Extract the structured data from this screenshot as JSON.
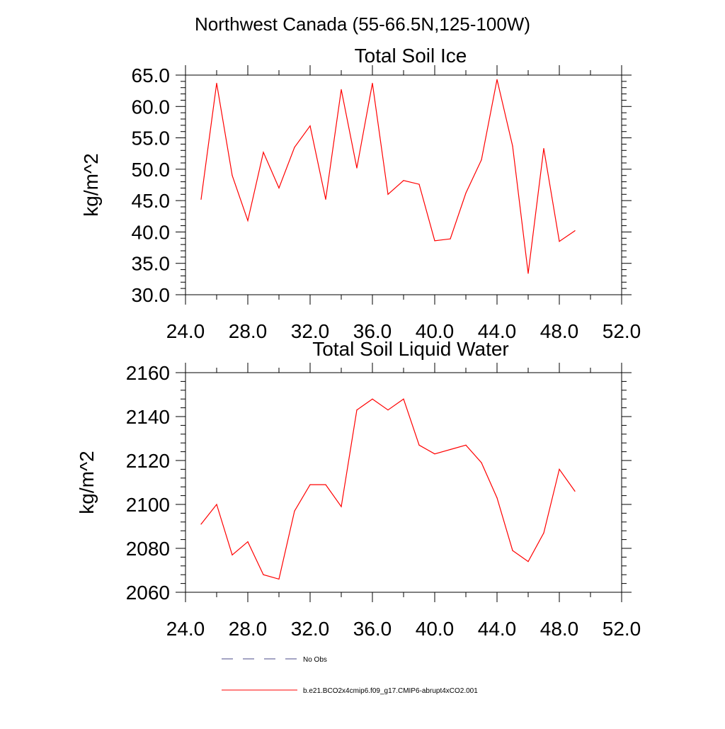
{
  "page_title": "Northwest Canada (55-66.5N,125-100W)",
  "chart_data": [
    {
      "type": "line",
      "title": "Total Soil Ice",
      "xlabel": "",
      "ylabel": "kg/m^2",
      "xlim": [
        24,
        52
      ],
      "ylim": [
        30,
        65
      ],
      "x_ticks": [
        24,
        28,
        32,
        36,
        40,
        44,
        48,
        52
      ],
      "x_tick_labels": [
        "24.0",
        "28.0",
        "32.0",
        "36.0",
        "40.0",
        "44.0",
        "48.0",
        "52.0"
      ],
      "y_ticks": [
        30,
        35,
        40,
        45,
        50,
        55,
        60,
        65
      ],
      "y_tick_labels": [
        "30.0",
        "35.0",
        "40.0",
        "45.0",
        "50.0",
        "55.0",
        "60.0",
        "65.0"
      ],
      "series": [
        {
          "name": "b.e21.BCO2x4cmip6.f09_g17.CMIP6-abrupt4xCO2.001",
          "color": "#ff0000",
          "x": [
            25,
            26,
            27,
            28,
            29,
            30,
            31,
            32,
            33,
            34,
            35,
            36,
            37,
            38,
            39,
            40,
            41,
            42,
            43,
            44,
            45,
            46,
            47,
            48,
            49
          ],
          "values": [
            45.2,
            63.7,
            49.0,
            41.8,
            52.7,
            47.0,
            53.5,
            56.9,
            45.2,
            62.7,
            50.2,
            63.7,
            46.0,
            48.2,
            47.6,
            38.6,
            38.9,
            46.2,
            51.5,
            64.3,
            53.7,
            33.4,
            53.3,
            38.5,
            40.2
          ]
        }
      ]
    },
    {
      "type": "line",
      "title": "Total Soil Liquid Water",
      "xlabel": "",
      "ylabel": "kg/m^2",
      "xlim": [
        24,
        52
      ],
      "ylim": [
        2060,
        2160
      ],
      "x_ticks": [
        24,
        28,
        32,
        36,
        40,
        44,
        48,
        52
      ],
      "x_tick_labels": [
        "24.0",
        "28.0",
        "32.0",
        "36.0",
        "40.0",
        "44.0",
        "48.0",
        "52.0"
      ],
      "y_ticks": [
        2060,
        2080,
        2100,
        2120,
        2140,
        2160
      ],
      "y_tick_labels": [
        "2060",
        "2080",
        "2100",
        "2120",
        "2140",
        "2160"
      ],
      "series": [
        {
          "name": "b.e21.BCO2x4cmip6.f09_g17.CMIP6-abrupt4xCO2.001",
          "color": "#ff0000",
          "x": [
            25,
            26,
            27,
            28,
            29,
            30,
            31,
            32,
            33,
            34,
            35,
            36,
            37,
            38,
            39,
            40,
            41,
            42,
            43,
            44,
            45,
            46,
            47,
            48,
            49
          ],
          "values": [
            2091,
            2100,
            2077,
            2083,
            2068,
            2066,
            2097,
            2109,
            2109,
            2099,
            2143,
            2148,
            2143,
            2148,
            2127,
            2123,
            2125,
            2127,
            2119,
            2103,
            2079,
            2074,
            2087,
            2116,
            2106
          ]
        }
      ]
    }
  ],
  "legend": {
    "items": [
      {
        "label": "No Obs",
        "color": "#4a4a8a",
        "style": "dashed"
      },
      {
        "label": "b.e21.BCO2x4cmip6.f09_g17.CMIP6-abrupt4xCO2.001",
        "color": "#ff0000",
        "style": "solid"
      }
    ]
  }
}
